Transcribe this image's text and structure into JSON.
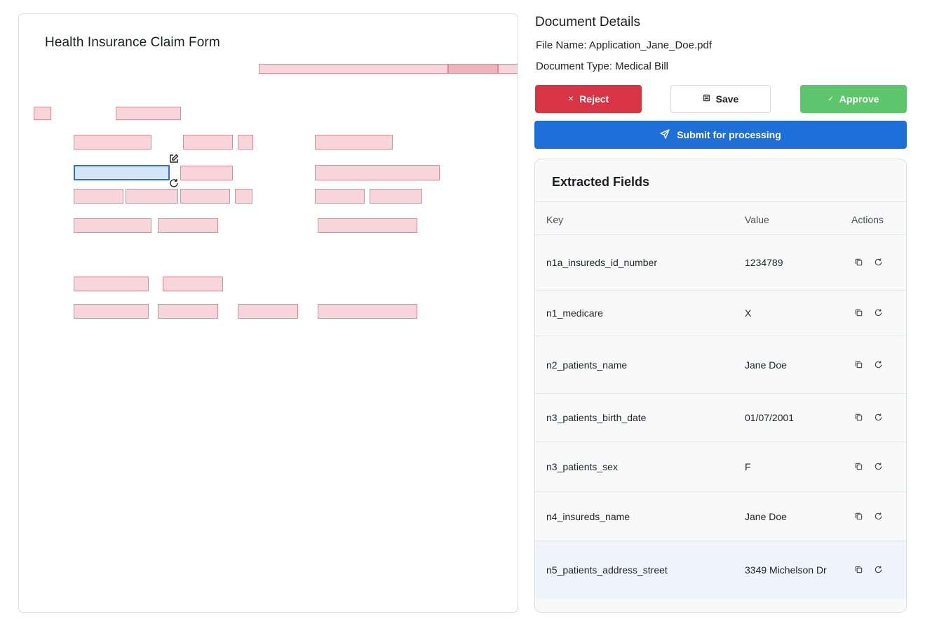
{
  "viewer": {
    "title": "Health Insurance Claim Form"
  },
  "details": {
    "title": "Document Details",
    "file_name_label": "File Name: ",
    "file_name": "Application_Jane_Doe.pdf",
    "doc_type_label": "Document Type: ",
    "doc_type": "Medical Bill"
  },
  "actions": {
    "reject": "Reject",
    "save": "Save",
    "approve": "Approve",
    "submit": "Submit for processing"
  },
  "fields": {
    "title": "Extracted Fields",
    "headers": {
      "key": "Key",
      "value": "Value",
      "actions": "Actions"
    },
    "rows": [
      {
        "key": "n1a_insureds_id_number",
        "value": "1234789"
      },
      {
        "key": "n1_medicare",
        "value": "X"
      },
      {
        "key": "n2_patients_name",
        "value": "Jane Doe"
      },
      {
        "key": "n3_patients_birth_date",
        "value": "01/07/2001"
      },
      {
        "key": "n3_patients_sex",
        "value": "F"
      },
      {
        "key": "n4_insureds_name",
        "value": "Jane Doe"
      },
      {
        "key": "n5_patients_address_street",
        "value": "3349 Michelson Dr"
      }
    ]
  },
  "colors": {
    "reject": "#d73445",
    "approve": "#5dc66c",
    "submit": "#1f6fd9",
    "field_box": "#f8d5da",
    "selected_box": "#d6e4f8"
  }
}
